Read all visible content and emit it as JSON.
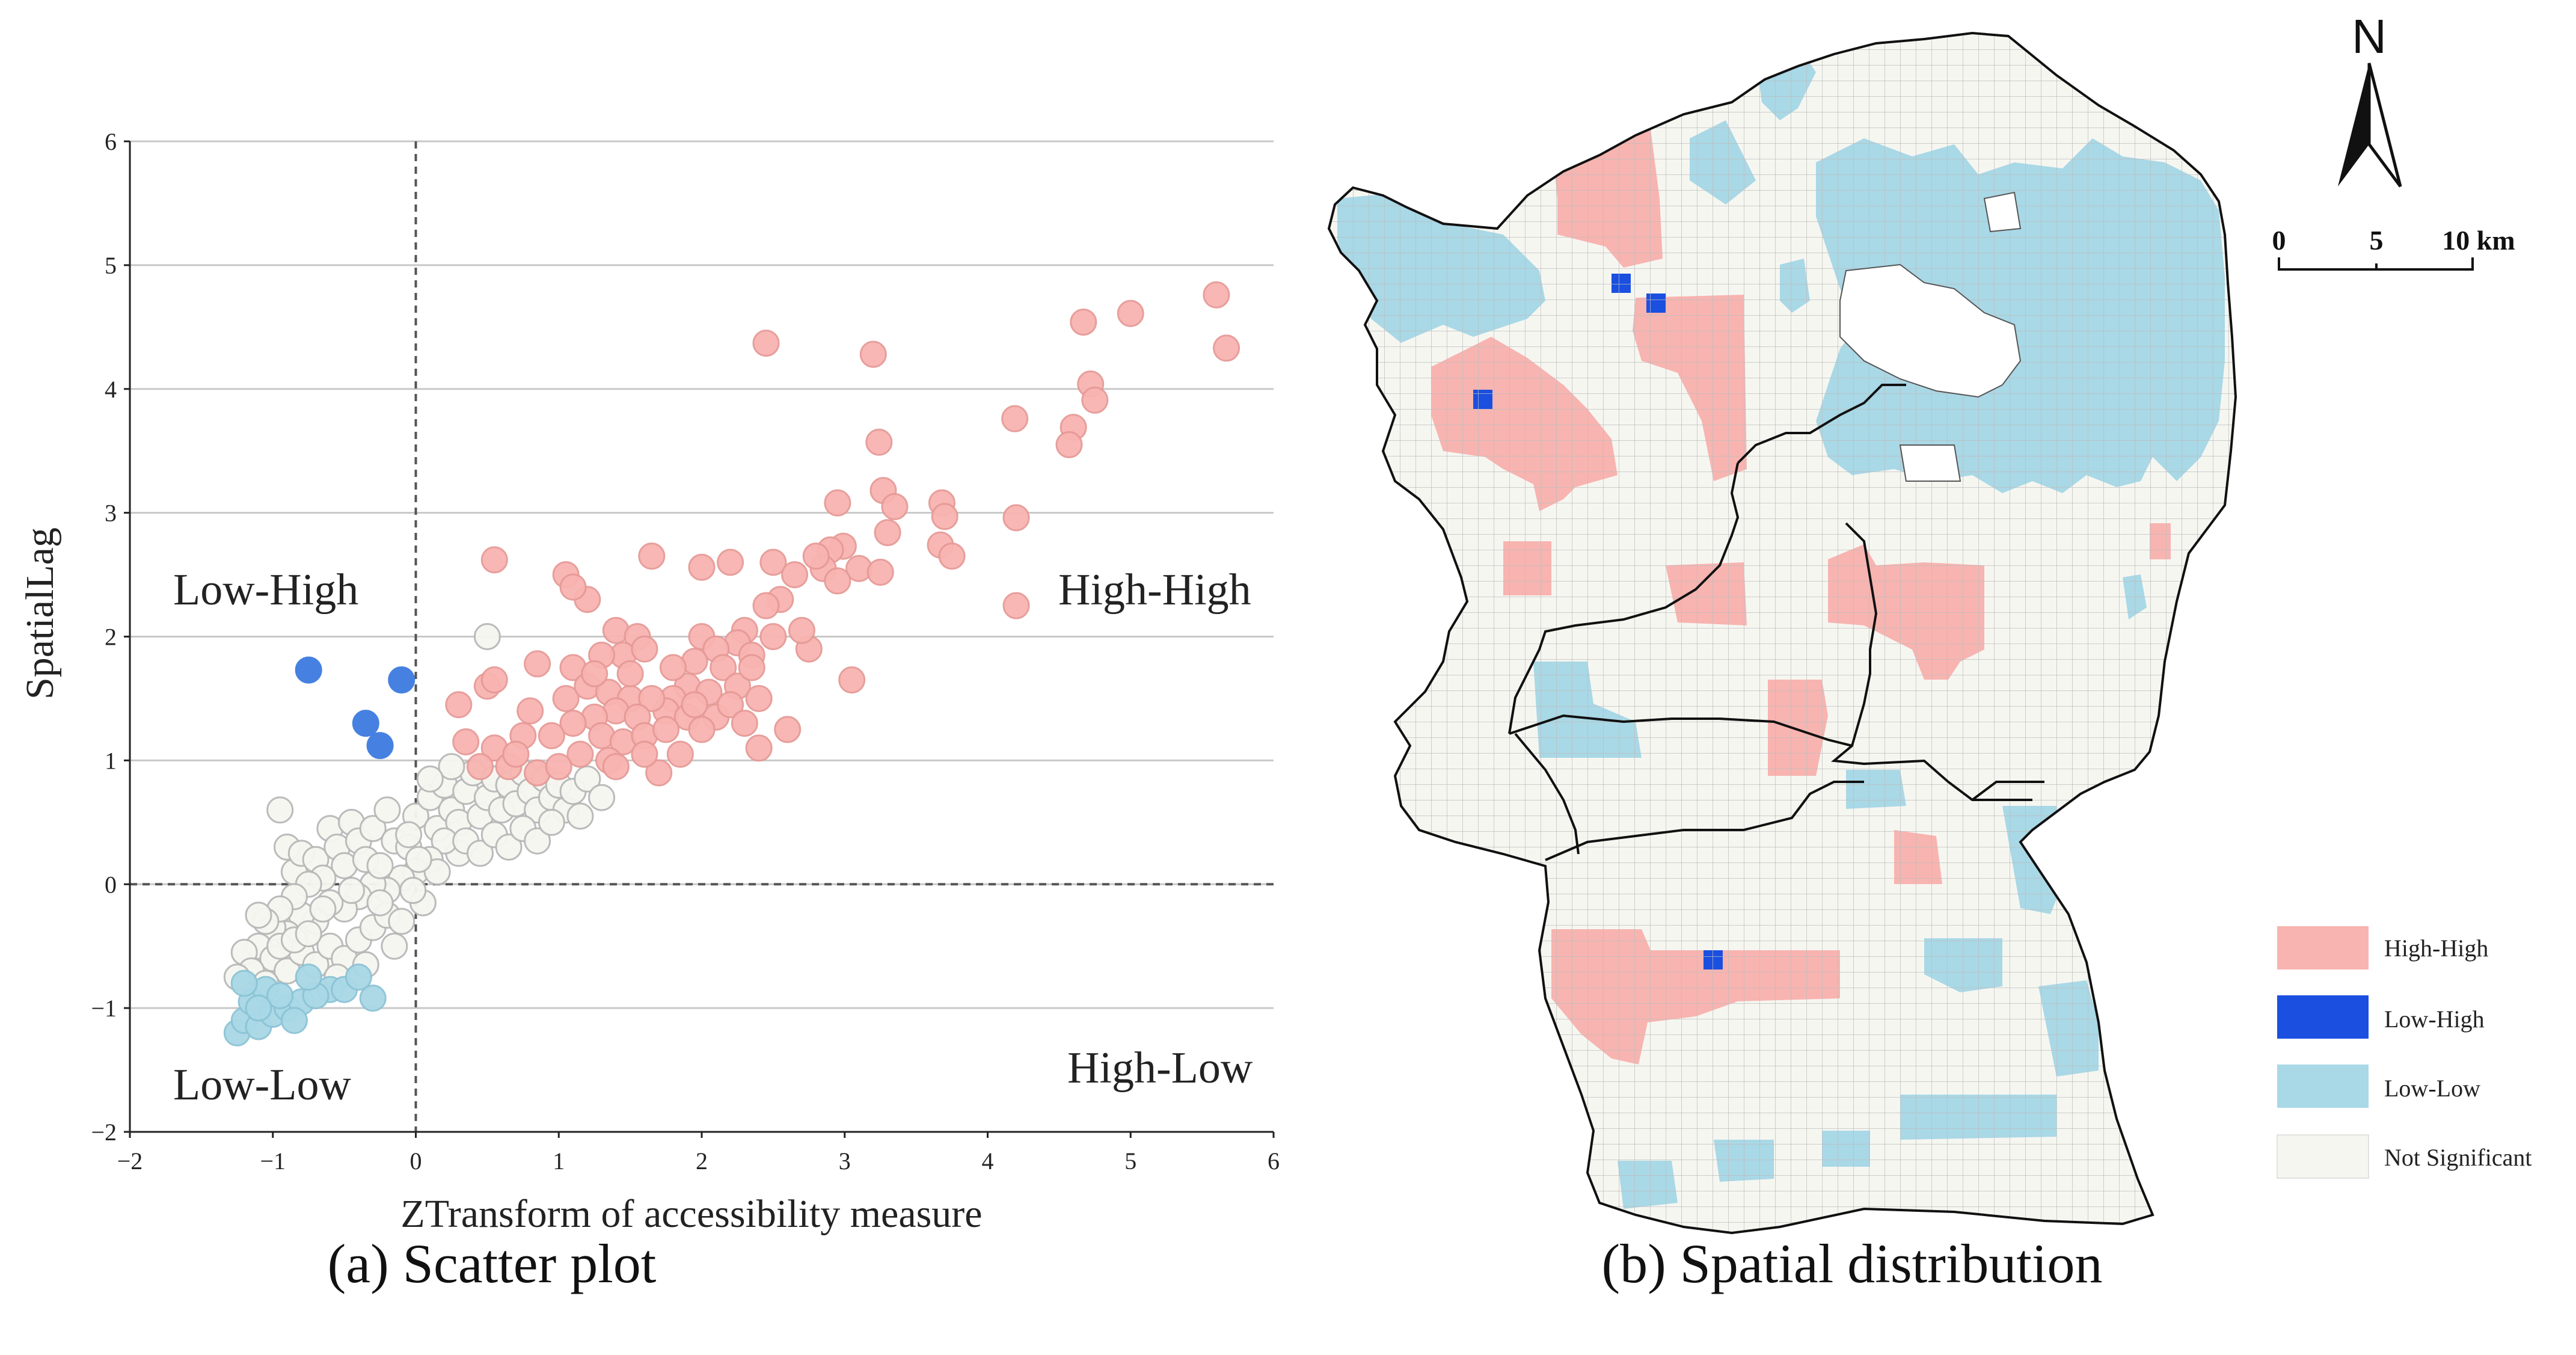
{
  "colors": {
    "high_high": "#f8b4b0",
    "high_high_stroke": "#e69a97",
    "low_high": "#1a4fe0",
    "low_high_scatter": "#3d7be0",
    "low_low": "#a9d8e6",
    "low_low_stroke": "#8cc4d6",
    "not_significant": "#f6f6f1",
    "ns_stroke": "#b8b8b8",
    "grid": "#c8c8c8"
  },
  "chart_data": {
    "type": "scatter",
    "title": "",
    "caption": "(a)  Scatter plot",
    "xlabel": "ZTransform of accessibility measure",
    "ylabel": "SpatialLag",
    "xlim": [
      -2,
      6
    ],
    "ylim": [
      -2,
      6
    ],
    "x_ticks": [
      "−2",
      "−1",
      "0",
      "1",
      "2",
      "3",
      "4",
      "5",
      "6"
    ],
    "y_ticks": [
      "−2",
      "−1",
      "0",
      "1",
      "2",
      "3",
      "4",
      "5",
      "6"
    ],
    "x_tick_values": [
      -2,
      -1,
      0,
      1,
      2,
      3,
      4,
      5,
      6
    ],
    "y_tick_values": [
      -2,
      -1,
      0,
      1,
      2,
      3,
      4,
      5,
      6
    ],
    "grid": "horizontal",
    "reference_lines": {
      "x": 0,
      "y": 0
    },
    "quadrant_labels": {
      "top_left": "Low-High",
      "top_right": "High-High",
      "bottom_left": "Low-Low",
      "bottom_right": "High-Low"
    },
    "series": [
      {
        "name": "High-High",
        "points": [
          [
            5.6,
            4.76
          ],
          [
            5.67,
            4.33
          ],
          [
            5.0,
            4.61
          ],
          [
            4.67,
            4.54
          ],
          [
            4.72,
            4.04
          ],
          [
            4.75,
            3.91
          ],
          [
            4.6,
            3.69
          ],
          [
            4.57,
            3.55
          ],
          [
            4.19,
            3.76
          ],
          [
            4.2,
            2.96
          ],
          [
            4.2,
            2.25
          ],
          [
            3.2,
            4.28
          ],
          [
            2.45,
            4.37
          ],
          [
            3.24,
            3.57
          ],
          [
            3.27,
            3.18
          ],
          [
            3.35,
            3.05
          ],
          [
            3.68,
            3.08
          ],
          [
            3.7,
            2.97
          ],
          [
            3.67,
            2.74
          ],
          [
            3.75,
            2.65
          ],
          [
            2.95,
            3.08
          ],
          [
            3.3,
            2.84
          ],
          [
            2.99,
            2.73
          ],
          [
            2.9,
            2.7
          ],
          [
            2.85,
            2.55
          ],
          [
            3.1,
            2.55
          ],
          [
            3.25,
            2.52
          ],
          [
            2.8,
            2.65
          ],
          [
            2.5,
            2.6
          ],
          [
            2.65,
            2.5
          ],
          [
            2.95,
            2.45
          ],
          [
            2.55,
            2.3
          ],
          [
            2.45,
            2.25
          ],
          [
            2.3,
            2.05
          ],
          [
            2.25,
            1.95
          ],
          [
            2.0,
            2.56
          ],
          [
            2.2,
            2.6
          ],
          [
            3.05,
            1.65
          ],
          [
            2.75,
            1.9
          ],
          [
            2.7,
            2.05
          ],
          [
            2.35,
            1.85
          ],
          [
            2.5,
            2.0
          ],
          [
            2.0,
            2.0
          ],
          [
            2.1,
            1.9
          ],
          [
            1.95,
            1.8
          ],
          [
            2.15,
            1.75
          ],
          [
            1.9,
            1.6
          ],
          [
            2.05,
            1.55
          ],
          [
            2.25,
            1.6
          ],
          [
            1.8,
            1.5
          ],
          [
            1.75,
            1.4
          ],
          [
            1.9,
            1.35
          ],
          [
            2.1,
            1.35
          ],
          [
            2.2,
            1.45
          ],
          [
            2.0,
            1.25
          ],
          [
            2.35,
            1.75
          ],
          [
            2.6,
            1.25
          ],
          [
            2.4,
            1.1
          ],
          [
            1.65,
            2.65
          ],
          [
            1.4,
            2.05
          ],
          [
            1.55,
            2.0
          ],
          [
            1.2,
            2.3
          ],
          [
            1.05,
            2.5
          ],
          [
            1.1,
            2.4
          ],
          [
            0.55,
            2.62
          ],
          [
            1.45,
            1.85
          ],
          [
            1.6,
            1.9
          ],
          [
            1.3,
            1.85
          ],
          [
            1.1,
            1.75
          ],
          [
            0.85,
            1.78
          ],
          [
            0.5,
            1.6
          ],
          [
            0.55,
            1.65
          ],
          [
            1.05,
            1.5
          ],
          [
            1.2,
            1.6
          ],
          [
            1.35,
            1.55
          ],
          [
            1.5,
            1.5
          ],
          [
            1.65,
            1.5
          ],
          [
            1.4,
            1.4
          ],
          [
            1.55,
            1.35
          ],
          [
            1.25,
            1.35
          ],
          [
            1.1,
            1.3
          ],
          [
            0.95,
            1.2
          ],
          [
            1.3,
            1.2
          ],
          [
            1.45,
            1.15
          ],
          [
            1.6,
            1.2
          ],
          [
            1.75,
            1.25
          ],
          [
            1.85,
            1.05
          ],
          [
            1.15,
            1.05
          ],
          [
            0.8,
            1.4
          ],
          [
            0.75,
            1.2
          ],
          [
            0.55,
            1.1
          ],
          [
            0.45,
            0.95
          ],
          [
            0.65,
            0.95
          ],
          [
            0.85,
            0.9
          ],
          [
            1.0,
            0.95
          ],
          [
            1.35,
            1.0
          ],
          [
            1.7,
            0.9
          ],
          [
            1.6,
            1.05
          ],
          [
            0.3,
            1.45
          ],
          [
            0.35,
            1.15
          ],
          [
            1.25,
            1.7
          ],
          [
            1.5,
            1.7
          ],
          [
            1.8,
            1.75
          ],
          [
            1.95,
            1.45
          ],
          [
            2.4,
            1.5
          ],
          [
            2.3,
            1.3
          ],
          [
            0.7,
            1.05
          ],
          [
            1.4,
            0.95
          ]
        ]
      },
      {
        "name": "Low-High",
        "points": [
          [
            -0.75,
            1.73
          ],
          [
            -0.1,
            1.65
          ],
          [
            -0.35,
            1.3
          ],
          [
            -0.25,
            1.12
          ]
        ]
      },
      {
        "name": "Low-Low",
        "points": [
          [
            -1.25,
            -1.2
          ],
          [
            -1.2,
            -1.1
          ],
          [
            -1.1,
            -1.15
          ],
          [
            -1.0,
            -1.05
          ],
          [
            -0.9,
            -1.0
          ],
          [
            -0.8,
            -0.95
          ],
          [
            -1.15,
            -0.95
          ],
          [
            -0.6,
            -0.85
          ],
          [
            -0.5,
            -0.85
          ],
          [
            -0.7,
            -0.9
          ],
          [
            -0.3,
            -0.92
          ],
          [
            -1.05,
            -0.85
          ],
          [
            -0.95,
            -0.9
          ],
          [
            -0.85,
            -1.1
          ],
          [
            -1.2,
            -0.8
          ],
          [
            -0.4,
            -0.75
          ],
          [
            -0.75,
            -0.75
          ],
          [
            -1.1,
            -1.0
          ]
        ]
      },
      {
        "name": "Not Significant",
        "points": [
          [
            0.5,
            2.0
          ],
          [
            -0.95,
            0.6
          ],
          [
            -0.9,
            0.3
          ],
          [
            -0.85,
            0.1
          ],
          [
            -0.8,
            0.25
          ],
          [
            -0.7,
            0.2
          ],
          [
            -0.6,
            0.45
          ],
          [
            -0.55,
            0.3
          ],
          [
            -0.5,
            0.15
          ],
          [
            -0.45,
            0.5
          ],
          [
            -0.4,
            0.35
          ],
          [
            -0.35,
            0.2
          ],
          [
            -0.3,
            0.45
          ],
          [
            -0.2,
            0.6
          ],
          [
            -0.15,
            0.35
          ],
          [
            -0.05,
            0.3
          ],
          [
            0.0,
            0.55
          ],
          [
            0.1,
            0.7
          ],
          [
            0.15,
            0.45
          ],
          [
            0.2,
            0.8
          ],
          [
            0.25,
            0.6
          ],
          [
            0.3,
            0.5
          ],
          [
            0.35,
            0.75
          ],
          [
            0.4,
            0.9
          ],
          [
            0.45,
            0.55
          ],
          [
            0.5,
            0.7
          ],
          [
            0.55,
            0.85
          ],
          [
            0.6,
            0.6
          ],
          [
            0.65,
            0.8
          ],
          [
            0.7,
            0.65
          ],
          [
            0.75,
            0.9
          ],
          [
            0.8,
            0.75
          ],
          [
            0.85,
            0.6
          ],
          [
            0.9,
            0.85
          ],
          [
            0.95,
            0.7
          ],
          [
            1.0,
            0.8
          ],
          [
            1.05,
            0.6
          ],
          [
            1.1,
            0.75
          ],
          [
            1.2,
            0.85
          ],
          [
            1.3,
            0.7
          ],
          [
            0.3,
            0.25
          ],
          [
            0.2,
            0.35
          ],
          [
            0.1,
            0.2
          ],
          [
            0.0,
            0.1
          ],
          [
            -0.1,
            0.05
          ],
          [
            -0.2,
            -0.05
          ],
          [
            -0.3,
            0.0
          ],
          [
            -0.4,
            -0.1
          ],
          [
            -0.5,
            -0.2
          ],
          [
            -0.6,
            -0.15
          ],
          [
            -0.7,
            -0.3
          ],
          [
            -0.8,
            -0.25
          ],
          [
            -0.9,
            -0.4
          ],
          [
            -1.0,
            -0.35
          ],
          [
            -1.1,
            -0.5
          ],
          [
            -1.2,
            -0.55
          ],
          [
            -1.0,
            -0.6
          ],
          [
            -0.9,
            -0.7
          ],
          [
            -0.8,
            -0.55
          ],
          [
            -0.7,
            -0.65
          ],
          [
            -0.6,
            -0.5
          ],
          [
            -0.5,
            -0.6
          ],
          [
            -0.4,
            -0.45
          ],
          [
            -0.3,
            -0.35
          ],
          [
            -0.2,
            -0.25
          ],
          [
            -0.1,
            -0.3
          ],
          [
            0.05,
            -0.15
          ],
          [
            -0.15,
            -0.5
          ],
          [
            -0.35,
            -0.65
          ],
          [
            -0.55,
            -0.75
          ],
          [
            -1.15,
            -0.7
          ],
          [
            -1.05,
            -0.8
          ],
          [
            -0.95,
            -0.5
          ],
          [
            -0.85,
            -0.45
          ],
          [
            -0.75,
            -0.4
          ],
          [
            -0.65,
            -0.2
          ],
          [
            -0.45,
            -0.05
          ],
          [
            -0.25,
            0.15
          ],
          [
            -0.05,
            0.4
          ],
          [
            0.15,
            0.1
          ],
          [
            0.35,
            0.35
          ],
          [
            0.45,
            0.25
          ],
          [
            0.55,
            0.4
          ],
          [
            0.65,
            0.3
          ],
          [
            0.75,
            0.45
          ],
          [
            0.85,
            0.35
          ],
          [
            0.95,
            0.5
          ],
          [
            1.15,
            0.55
          ],
          [
            0.25,
            0.95
          ],
          [
            0.1,
            0.85
          ],
          [
            -0.65,
            0.05
          ],
          [
            -0.75,
            0.0
          ],
          [
            -0.85,
            -0.1
          ],
          [
            -0.95,
            -0.2
          ],
          [
            -1.05,
            -0.3
          ],
          [
            -1.25,
            -0.75
          ],
          [
            -1.1,
            -0.25
          ],
          [
            -0.25,
            -0.15
          ],
          [
            0.02,
            0.2
          ],
          [
            -0.02,
            -0.05
          ]
        ]
      }
    ]
  },
  "map": {
    "caption": "(b)  Spatial distribution",
    "north_label": "N",
    "scale_labels": [
      "0",
      "5",
      "10 km"
    ],
    "legend": [
      {
        "label": "High-High",
        "key": "high_high"
      },
      {
        "label": "Low-High",
        "key": "low_high"
      },
      {
        "label": "Low-Low",
        "key": "low_low"
      },
      {
        "label": "Not Significant",
        "key": "not_significant"
      }
    ]
  }
}
